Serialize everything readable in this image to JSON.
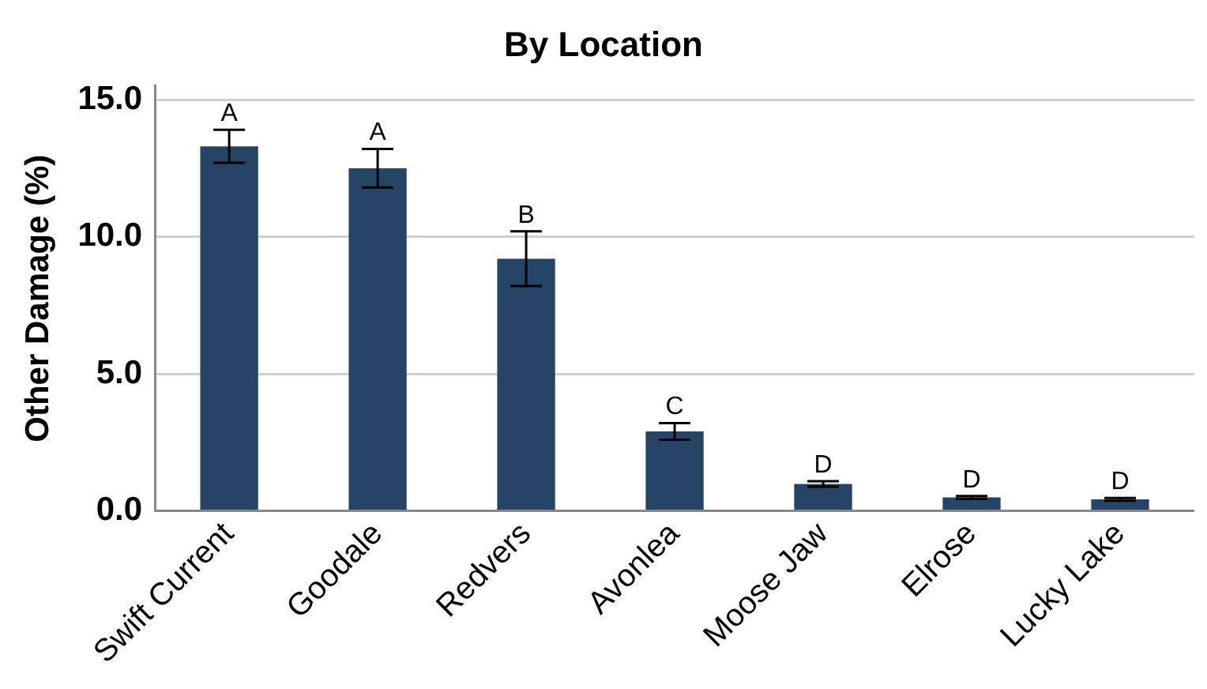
{
  "chart_data": {
    "type": "bar",
    "title": "By Location",
    "ylabel": "Other Damage (%)",
    "categories": [
      "Swift Current",
      "Goodale",
      "Redvers",
      "Avonlea",
      "Moose Jaw",
      "Elrose",
      "Lucky Lake"
    ],
    "values": [
      13.3,
      12.5,
      9.2,
      2.9,
      0.98,
      0.49,
      0.42
    ],
    "errors": [
      0.6,
      0.7,
      1.0,
      0.3,
      0.1,
      0.05,
      0.05
    ],
    "color": "#264566",
    "ylim": [
      0,
      15.5
    ],
    "yticks": [
      {
        "value": 0,
        "label": "0.0"
      },
      {
        "value": 5,
        "label": "5.0"
      },
      {
        "value": 10,
        "label": "10.0"
      },
      {
        "value": 15,
        "label": "15.0"
      }
    ],
    "grid": "y",
    "annotations": [
      {
        "text": "A",
        "x": "Swift Current",
        "y": 13.9
      },
      {
        "text": "A",
        "x": "Goodale",
        "y": 13.2
      },
      {
        "text": "B",
        "x": "Redvers",
        "y": 10.2
      },
      {
        "text": "C",
        "x": "Avonlea",
        "y": 3.2
      },
      {
        "text": "D",
        "x": "Moose Jaw",
        "y": 1.08
      },
      {
        "text": "D",
        "x": "Elrose",
        "y": 0.54
      },
      {
        "text": "D",
        "x": "Lucky Lake",
        "y": 0.47
      }
    ]
  }
}
